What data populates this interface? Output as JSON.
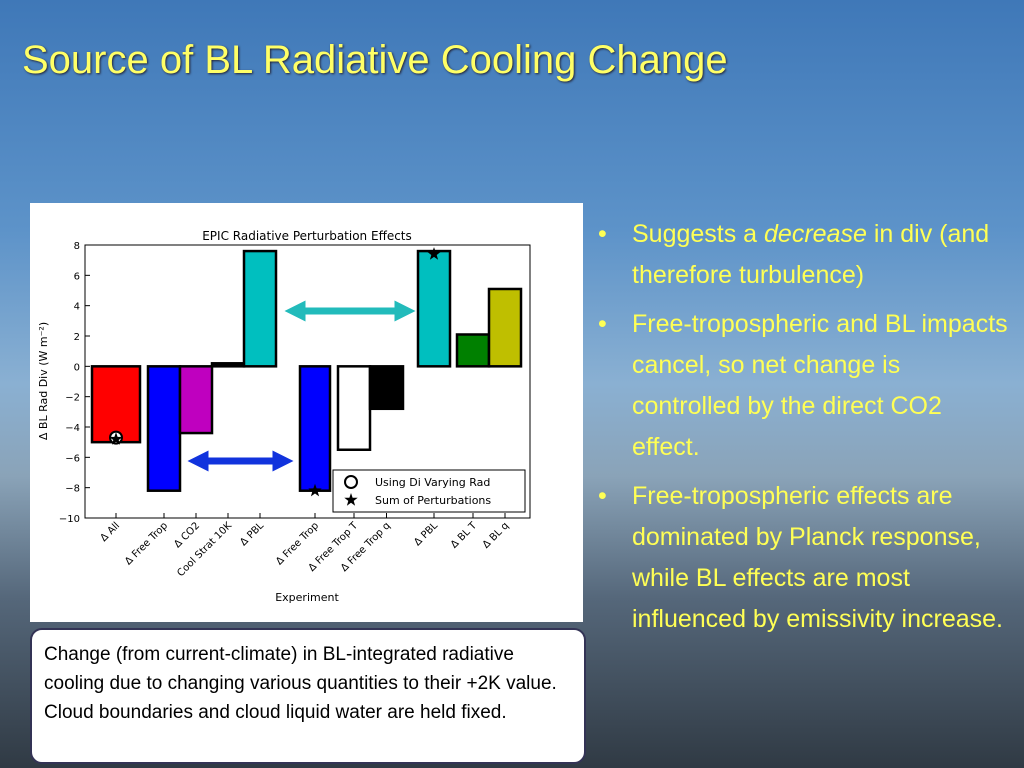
{
  "slide": {
    "title": "Source of BL Radiative Cooling Change",
    "bullets": [
      {
        "parts": [
          "Suggests a ",
          "decrease",
          " in div (and therefore turbulence)"
        ]
      },
      {
        "parts": [
          "Free-tropospheric and BL impacts cancel, so net change is controlled by the direct CO2 effect."
        ]
      },
      {
        "parts": [
          "Free-tropospheric effects are dominated by Planck response, while BL effects are most influenced by emissivity increase."
        ]
      }
    ],
    "caption": "Change (from current-climate) in BL-integrated radiative cooling due to changing various quantities to their +2K value. Cloud boundaries and cloud liquid water are held fixed."
  },
  "chart_data": {
    "type": "bar",
    "title": "EPIC Radiative Perturbation Effects",
    "x_label": "Experiment",
    "y_label": "Δ BL Rad Div (W m⁻²)",
    "categories": [
      "Δ All",
      "Δ Free Trop",
      "Δ CO2",
      "Cool Strat 10K",
      "Δ PBL",
      "Δ Free Trop",
      "Δ Free Trop T",
      "Δ Free Trop q",
      "Δ PBL",
      "Δ BL T",
      "Δ BL q"
    ],
    "values": [
      -5,
      -8.2,
      -4.4,
      0.2,
      7.6,
      -8.2,
      -5.5,
      -2.8,
      7.6,
      2.1,
      5.1
    ],
    "colors": [
      "#ff0000",
      "#0000ff",
      "#bf00bf",
      "#000000",
      "#00bfbf",
      "#0000ff",
      "#ffffff",
      "#000000",
      "#00bfbf",
      "#008000",
      "#bfbf00"
    ],
    "series": [
      {
        "name": "Using Di Varying Rad",
        "marker": "circle",
        "values": [
          -4.7,
          null,
          null,
          null,
          null,
          null,
          null,
          null,
          null,
          null,
          null
        ]
      },
      {
        "name": "Sum of Perturbations",
        "marker": "star",
        "values": [
          -4.8,
          null,
          null,
          null,
          null,
          -8.2,
          null,
          null,
          7.4,
          null,
          null
        ]
      }
    ],
    "ylim": [
      -10,
      8
    ],
    "yticks": [
      {
        "value": -10,
        "label": "−10"
      },
      {
        "value": -8,
        "label": "−8"
      },
      {
        "value": -6,
        "label": "−6"
      },
      {
        "value": -4,
        "label": "−4"
      },
      {
        "value": -2,
        "label": "−2"
      },
      0,
      2,
      4,
      6,
      8
    ],
    "grid": false,
    "legend": "lower right"
  }
}
